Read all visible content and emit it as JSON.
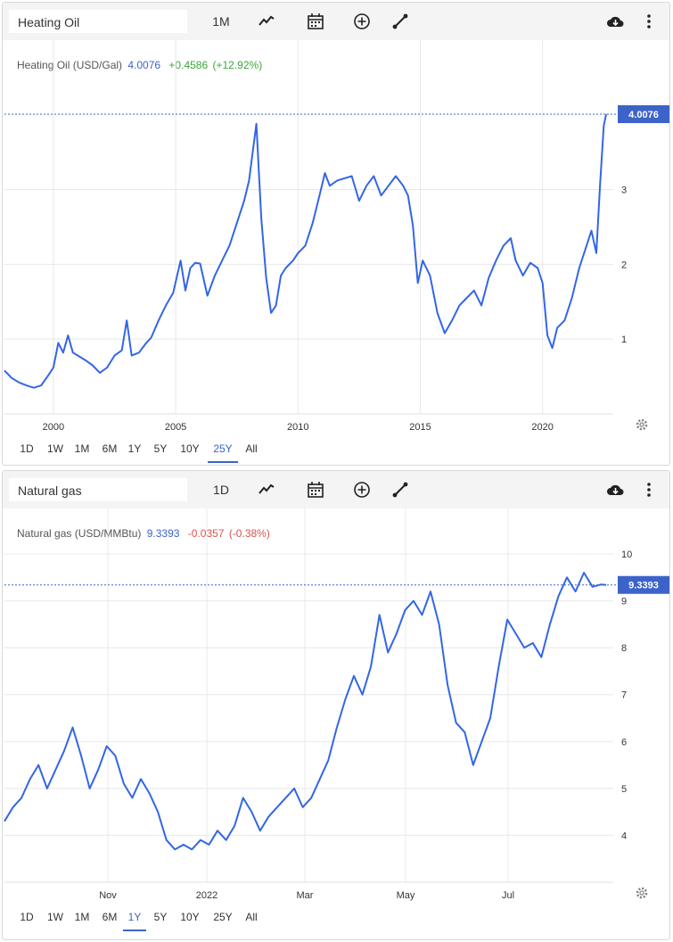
{
  "colors": {
    "line": "#3366e6",
    "accent": "#3c63c9",
    "up": "#3aa53a",
    "down": "#d9534f",
    "grid": "#e8e8e8",
    "toolbar": "#f4f4f4"
  },
  "panels": [
    {
      "symbol": "Heating Oil",
      "interval": "1M",
      "icons": [
        "chart-type-icon",
        "calendar-icon",
        "compare-add-icon",
        "draw-line-icon",
        "download-icon",
        "more-options-icon"
      ],
      "stats": {
        "name": "Heating Oil (USD/Gal)",
        "last": "4.0076",
        "change": "+0.4586",
        "change_pct": "(+12.92%)",
        "direction": "up"
      },
      "last_badge": "4.0076",
      "ranges": [
        "1D",
        "1W",
        "1M",
        "6M",
        "1Y",
        "5Y",
        "10Y",
        "25Y",
        "All"
      ],
      "active_range": "25Y"
    },
    {
      "symbol": "Natural gas",
      "interval": "1D",
      "icons": [
        "chart-type-icon",
        "calendar-icon",
        "compare-add-icon",
        "draw-line-icon",
        "download-icon",
        "more-options-icon"
      ],
      "stats": {
        "name": "Natural gas (USD/MMBtu)",
        "last": "9.3393",
        "change": "-0.0357",
        "change_pct": "(-0.38%)",
        "direction": "down"
      },
      "last_badge": "9.3393",
      "ranges": [
        "1D",
        "1W",
        "1M",
        "6M",
        "1Y",
        "5Y",
        "10Y",
        "25Y",
        "All"
      ],
      "active_range": "1Y"
    }
  ],
  "chart_data": [
    {
      "type": "line",
      "title": "Heating Oil (USD/Gal)",
      "x_tick_labels": [
        "2000",
        "2005",
        "2010",
        "2015",
        "2020"
      ],
      "y_tick_labels": [
        "1",
        "2",
        "3"
      ],
      "xlim": [
        1998.0,
        2022.6
      ],
      "ylim": [
        0.0,
        4.0076
      ],
      "grid": true,
      "series": [
        {
          "x": [
            1998.0,
            1998.3,
            1998.6,
            1998.9,
            1999.2,
            1999.5,
            1999.8,
            2000.0,
            2000.2,
            2000.4,
            2000.6,
            2000.8,
            2001.0,
            2001.3,
            2001.6,
            2001.9,
            2002.2,
            2002.5,
            2002.8,
            2003.0,
            2003.2,
            2003.5,
            2003.8,
            2004.0,
            2004.3,
            2004.6,
            2004.9,
            2005.2,
            2005.4,
            2005.6,
            2005.8,
            2006.0,
            2006.3,
            2006.6,
            2006.9,
            2007.2,
            2007.5,
            2007.8,
            2008.0,
            2008.3,
            2008.5,
            2008.7,
            2008.9,
            2009.1,
            2009.3,
            2009.5,
            2009.8,
            2010.0,
            2010.3,
            2010.6,
            2010.9,
            2011.1,
            2011.3,
            2011.6,
            2011.9,
            2012.2,
            2012.5,
            2012.8,
            2013.1,
            2013.4,
            2013.7,
            2014.0,
            2014.3,
            2014.5,
            2014.7,
            2014.9,
            2015.1,
            2015.4,
            2015.7,
            2016.0,
            2016.3,
            2016.6,
            2016.9,
            2017.2,
            2017.5,
            2017.8,
            2018.1,
            2018.4,
            2018.7,
            2018.9,
            2019.2,
            2019.5,
            2019.8,
            2020.0,
            2020.2,
            2020.4,
            2020.6,
            2020.9,
            2021.2,
            2021.5,
            2021.8,
            2022.0,
            2022.2,
            2022.35,
            2022.5,
            2022.6
          ],
          "y": [
            0.58,
            0.48,
            0.42,
            0.38,
            0.35,
            0.38,
            0.52,
            0.62,
            0.95,
            0.82,
            1.05,
            0.82,
            0.78,
            0.72,
            0.65,
            0.55,
            0.62,
            0.78,
            0.85,
            1.25,
            0.78,
            0.82,
            0.95,
            1.02,
            1.25,
            1.45,
            1.62,
            2.05,
            1.65,
            1.95,
            2.02,
            2.01,
            1.58,
            1.85,
            2.05,
            2.25,
            2.55,
            2.85,
            3.12,
            3.88,
            2.62,
            1.82,
            1.35,
            1.45,
            1.85,
            1.95,
            2.05,
            2.15,
            2.25,
            2.55,
            2.95,
            3.22,
            3.05,
            3.12,
            3.15,
            3.18,
            2.85,
            3.05,
            3.18,
            2.92,
            3.05,
            3.18,
            3.05,
            2.92,
            2.52,
            1.75,
            2.05,
            1.85,
            1.35,
            1.08,
            1.25,
            1.45,
            1.55,
            1.65,
            1.45,
            1.82,
            2.05,
            2.25,
            2.35,
            2.05,
            1.85,
            2.02,
            1.95,
            1.75,
            1.05,
            0.88,
            1.15,
            1.25,
            1.55,
            1.95,
            2.25,
            2.45,
            2.15,
            3.05,
            3.85,
            4.0076
          ]
        }
      ]
    },
    {
      "type": "line",
      "title": "Natural gas (USD/MMBtu)",
      "x_tick_labels": [
        "Nov",
        "2022",
        "Mar",
        "May",
        "Jul"
      ],
      "y_tick_labels": [
        "4",
        "5",
        "6",
        "7",
        "8",
        "9",
        "10"
      ],
      "xlim": [
        0,
        353
      ],
      "ylim": [
        3.0,
        10.5
      ],
      "grid": true,
      "series": [
        {
          "x": [
            0,
            5,
            10,
            15,
            20,
            25,
            30,
            35,
            40,
            45,
            50,
            55,
            60,
            65,
            70,
            75,
            80,
            85,
            90,
            95,
            100,
            105,
            110,
            115,
            120,
            125,
            130,
            135,
            140,
            145,
            150,
            155,
            160,
            165,
            170,
            175,
            180,
            185,
            190,
            195,
            200,
            205,
            210,
            215,
            220,
            225,
            230,
            235,
            240,
            245,
            250,
            255,
            260,
            265,
            270,
            275,
            280,
            285,
            290,
            295,
            300,
            305,
            310,
            315,
            320,
            325,
            330,
            335,
            340,
            345,
            350,
            353
          ],
          "y": [
            4.3,
            4.6,
            4.8,
            5.2,
            5.5,
            5.0,
            5.4,
            5.8,
            6.3,
            5.7,
            5.0,
            5.4,
            5.9,
            5.7,
            5.1,
            4.8,
            5.2,
            4.9,
            4.5,
            3.9,
            3.7,
            3.8,
            3.7,
            3.9,
            3.8,
            4.1,
            3.9,
            4.2,
            4.8,
            4.5,
            4.1,
            4.4,
            4.6,
            4.8,
            5.0,
            4.6,
            4.8,
            5.2,
            5.6,
            6.3,
            6.9,
            7.4,
            7.0,
            7.6,
            8.7,
            7.9,
            8.3,
            8.8,
            9.0,
            8.7,
            9.2,
            8.5,
            7.2,
            6.4,
            6.2,
            5.5,
            6.0,
            6.5,
            7.6,
            8.6,
            8.3,
            8.0,
            8.1,
            7.8,
            8.5,
            9.1,
            9.5,
            9.2,
            9.6,
            9.3,
            9.35,
            9.3393
          ]
        }
      ]
    }
  ]
}
